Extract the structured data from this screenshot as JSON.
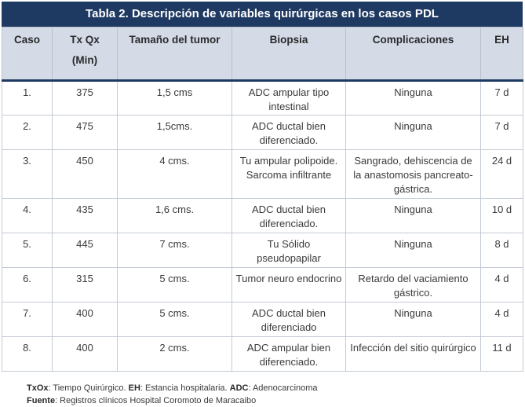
{
  "title": "Tabla 2. Descripción de variables quirúrgicas en los casos PDL",
  "headers": {
    "caso": "Caso",
    "txox": "Tx Qx",
    "txox_unit": "(Min)",
    "tamano": "Tamaño del tumor",
    "biopsia": "Biopsia",
    "complicaciones": "Complicaciones",
    "eh": "EH"
  },
  "rows": [
    {
      "caso": "1.",
      "tx": "375",
      "tamano": "1,5 cms",
      "biopsia": "ADC ampular tipo intestinal",
      "complicaciones": "Ninguna",
      "eh": "7 d"
    },
    {
      "caso": "2.",
      "tx": "475",
      "tamano": "1,5cms.",
      "biopsia": "ADC ductal bien diferenciado.",
      "complicaciones": "Ninguna",
      "eh": "7 d"
    },
    {
      "caso": "3.",
      "tx": "450",
      "tamano": "4 cms.",
      "biopsia": "Tu ampular polipoide. Sarcoma infiltrante",
      "complicaciones": "Sangrado, dehiscencia de la anastomosis pancreato-gástrica.",
      "eh": "24 d"
    },
    {
      "caso": "4.",
      "tx": "435",
      "tamano": "1,6 cms.",
      "biopsia": "ADC ductal bien diferenciado.",
      "complicaciones": "Ninguna",
      "eh": "10 d"
    },
    {
      "caso": "5.",
      "tx": "445",
      "tamano": "7 cms.",
      "biopsia": "Tu Sólido pseudopapilar",
      "complicaciones": "Ninguna",
      "eh": "8 d"
    },
    {
      "caso": "6.",
      "tx": "315",
      "tamano": "5 cms.",
      "biopsia": "Tumor neuro endocrino",
      "complicaciones": "Retardo del vaciamiento gástrico.",
      "eh": "4 d"
    },
    {
      "caso": "7.",
      "tx": "400",
      "tamano": "5 cms.",
      "biopsia": "ADC ductal bien diferenciado",
      "complicaciones": "Ninguna",
      "eh": "4 d"
    },
    {
      "caso": "8.",
      "tx": "400",
      "tamano": "2 cms.",
      "biopsia": "ADC ampular bien diferenciado.",
      "complicaciones": "Infección del sitio quirúrgico",
      "eh": "11 d"
    }
  ],
  "footnote": {
    "abbr1": "TxOx",
    "def1": ": Tiempo Quirúrgico. ",
    "abbr2": "EH",
    "def2": ": Estancia hospitalaria. ",
    "abbr3": "ADC",
    "def3": ": Adenocarcinoma",
    "source_label": "Fuente",
    "source_text": ": Registros clínicos Hospital Coromoto de Maracaibo"
  }
}
